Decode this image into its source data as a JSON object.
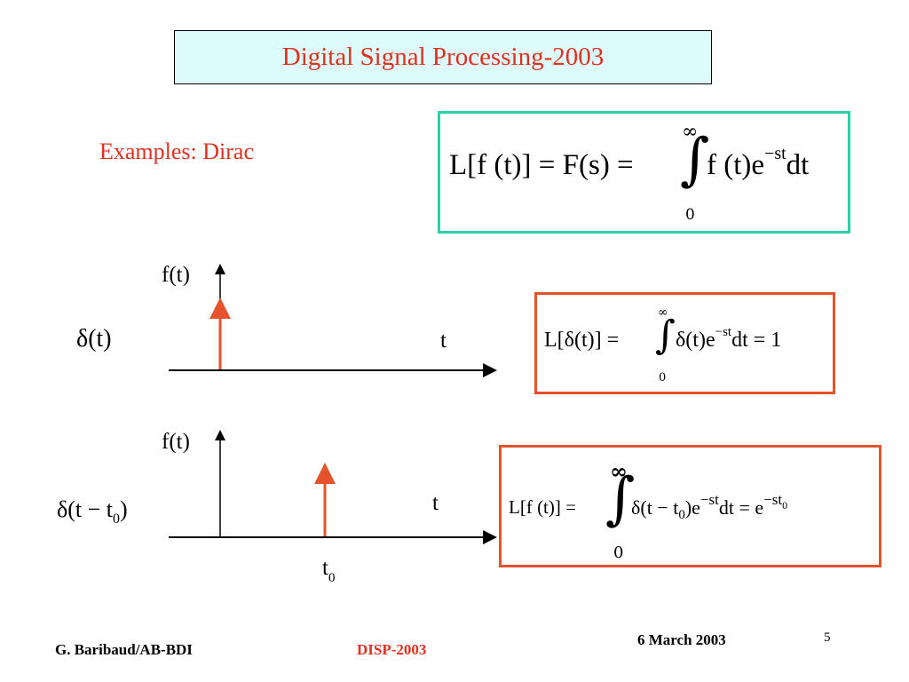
{
  "slide": {
    "title": "Digital Signal Processing-2003",
    "section_label": "Examples: Dirac"
  },
  "main_equation": {
    "lhs": "L[f (t)] = F(s) = ",
    "upper_limit": "∞",
    "lower_limit": "0",
    "integrand": "f (t)e",
    "exponent": "−st",
    "differential": "dt"
  },
  "plot1": {
    "y_label": "f(t)",
    "x_label": "t",
    "signal_label": "δ(t)"
  },
  "equation1": {
    "lhs": "L[δ(t)] = ",
    "upper_limit": "∞",
    "lower_limit": "0",
    "integrand": "δ(t)e",
    "exponent": "−st",
    "rest": "dt = 1"
  },
  "plot2": {
    "y_label": "f(t)",
    "x_label": "t",
    "signal_label_main": "δ(t − t",
    "signal_label_sub": "0",
    "signal_label_end": ")",
    "marker_label": "t",
    "marker_sub": "0"
  },
  "equation2": {
    "lhs": "L[f (t)] = ",
    "upper_limit": "∞",
    "lower_limit": "0",
    "integrand": "δ(t − t",
    "integrand_sub": "0",
    "integrand_end": ")e",
    "exponent": "−st",
    "middle": "dt = e",
    "rhs_exponent": "−st",
    "rhs_exponent_sub": "0"
  },
  "footer": {
    "author": "G. Baribaud/AB-BDI",
    "course": "DISP-2003",
    "date": "6 March 2003",
    "page_number": "5"
  },
  "colors": {
    "title_text": "#e0301e",
    "title_background": "#ddfbfb",
    "main_box_border": "#2ad0a8",
    "example_box_border": "#e5532d",
    "impulse_arrow": "#e5532d",
    "footer_course": "#e0301e"
  }
}
